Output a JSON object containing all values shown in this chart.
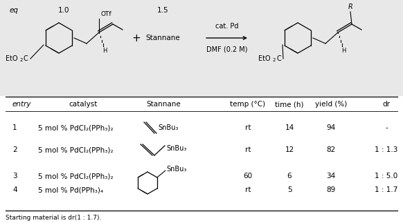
{
  "bg_color": "#e8e8e8",
  "table_bg": "#ffffff",
  "fig_width": 5.82,
  "fig_height": 3.23,
  "eq_label": "eq",
  "eq_val_left": "1.0",
  "eq_val_right": "1.5",
  "arrow_top": "cat. Pd",
  "arrow_bottom": "DMF (0.2 M)",
  "plus_sign": "+",
  "stannane_label": "Stannane",
  "headers": [
    "entry",
    "catalyst",
    "Stannane",
    "temp (°C)",
    "time (h)",
    "yield (%)",
    "dr"
  ],
  "row1": [
    "1",
    "5 mol % PdCl₂(PPh₃)₂",
    "rt",
    "14",
    "94",
    "-"
  ],
  "row2": [
    "2",
    "5 mol % PdCl₂(PPh₃)₂",
    "rt",
    "12",
    "82",
    "1 : 1.3"
  ],
  "row3": [
    "3",
    "5 mol % PdCl₂(PPh₃)₂",
    "60",
    "6",
    "34",
    "1 : 5.0"
  ],
  "row4": [
    "4",
    "5 mol % Pd(PPh₃)₄",
    "rt",
    "5",
    "89",
    "1 : 1.7"
  ],
  "footnote": "Starting material is dr(1 : 1.7)."
}
